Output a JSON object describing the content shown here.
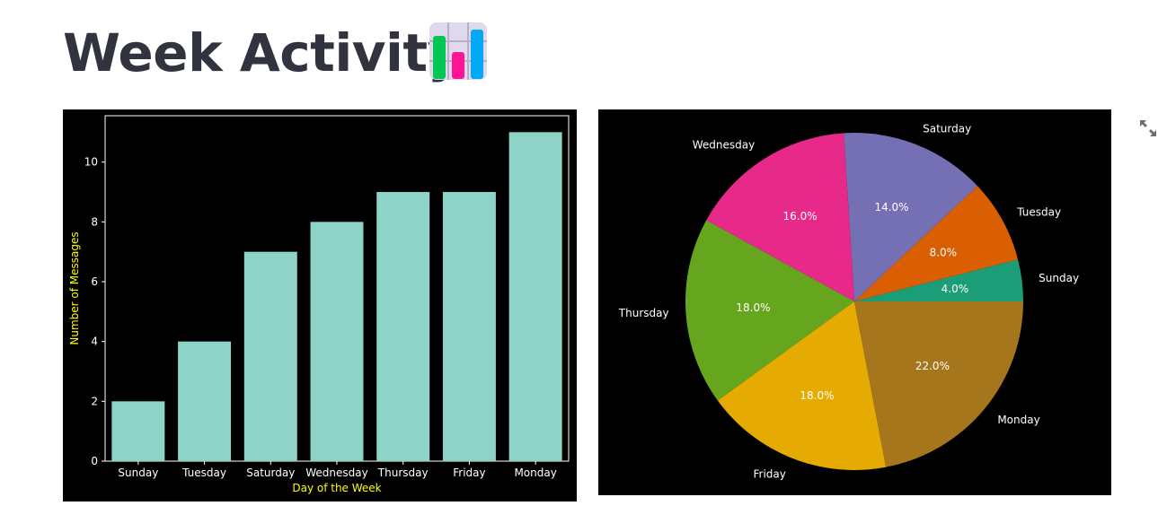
{
  "header": {
    "title": "Week Activity",
    "icon": "bar-chart-emoji-icon"
  },
  "toolbar": {
    "expand_icon": "fullscreen-expand-icon"
  },
  "colors": {
    "bar": "#8dd3c7",
    "axis_label": "#ffff00",
    "text": "#ffffff",
    "background": "#000000"
  },
  "chart_data": [
    {
      "type": "bar",
      "categories": [
        "Sunday",
        "Tuesday",
        "Saturday",
        "Wednesday",
        "Thursday",
        "Friday",
        "Monday"
      ],
      "values": [
        2,
        4,
        7,
        8,
        9,
        9,
        11
      ],
      "xlabel": "Day of the Week",
      "ylabel": "Number of Messages",
      "ylim": [
        0,
        11.55
      ],
      "yticks": [
        0,
        2,
        4,
        6,
        8,
        10
      ],
      "grid": false
    },
    {
      "type": "pie",
      "labels": [
        "Sunday",
        "Tuesday",
        "Saturday",
        "Wednesday",
        "Thursday",
        "Friday",
        "Monday"
      ],
      "values": [
        4.0,
        8.0,
        14.0,
        16.0,
        18.0,
        18.0,
        22.0
      ],
      "value_labels": [
        "4.0%",
        "8.0%",
        "14.0%",
        "16.0%",
        "18.0%",
        "18.0%",
        "22.0%"
      ],
      "colors": [
        "#1b9e77",
        "#d95f02",
        "#7570b3",
        "#e7298a",
        "#66a61e",
        "#e6ab02",
        "#a6761d"
      ]
    }
  ]
}
